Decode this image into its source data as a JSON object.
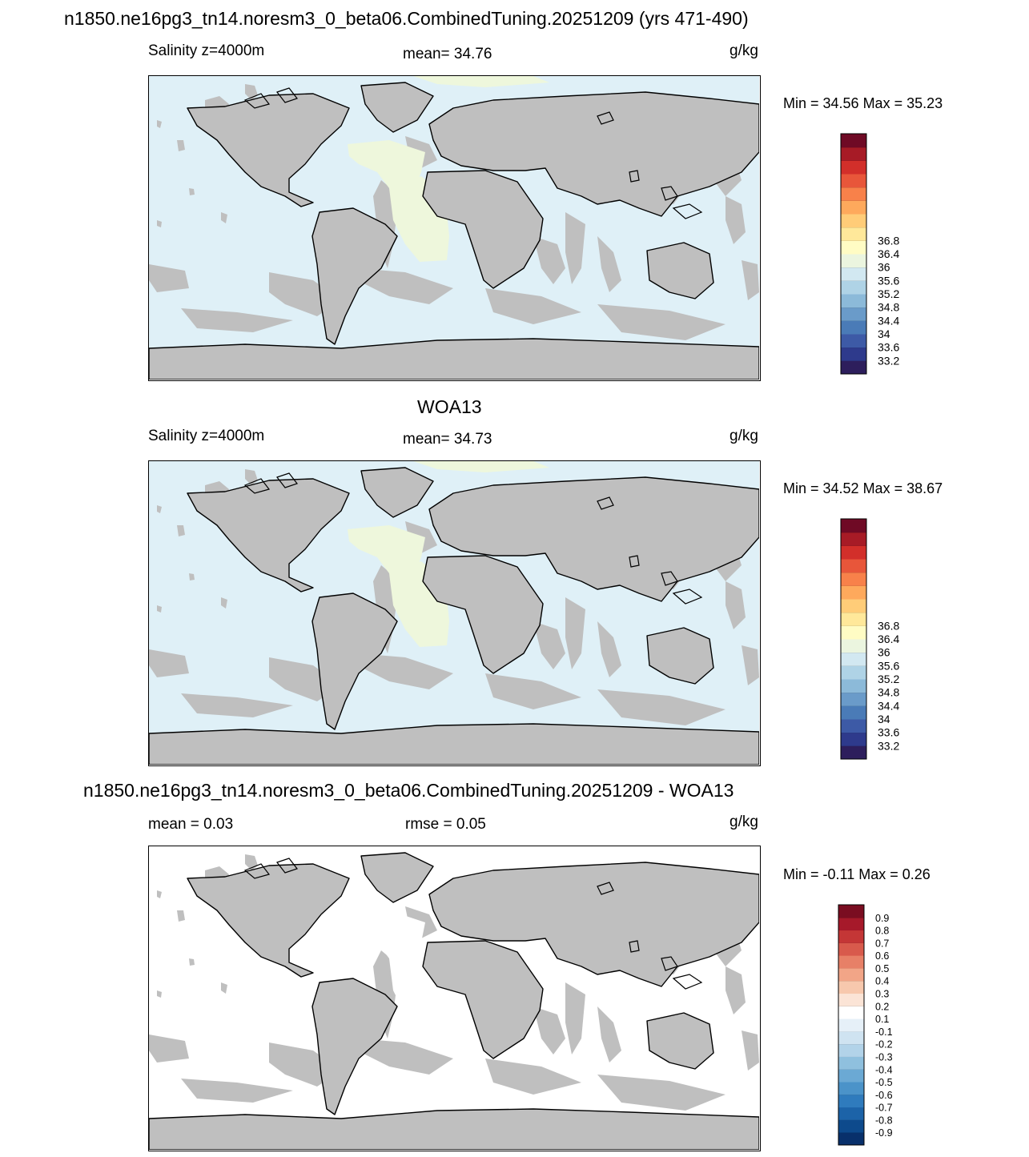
{
  "figure_title": "n1850.ne16pg3_tn14.noresm3_0_beta06.CombinedTuning.20251209 (yrs 471-490)",
  "colors": {
    "land": "#bfbfbf",
    "coast": "#000000",
    "deep_blue": "#dff0f7",
    "atl_green": "#eef7dc"
  },
  "panels": [
    {
      "id": "model",
      "header": "",
      "left_label": "Salinity z=4000m",
      "center_label": "mean=  34.76",
      "units": "g/kg",
      "minmax": "Min =  34.56 Max =  35.23",
      "ocean_fill": "#dff0f7",
      "atlantic_fill": "#eef7dc",
      "colorbar": {
        "colors": [
          "#2d1e5c",
          "#2e3a8c",
          "#3d5aa6",
          "#4a7bb7",
          "#6a9bc9",
          "#8cbad9",
          "#afd3e6",
          "#d2e8f1",
          "#ebf5df",
          "#fffcc4",
          "#ffe89a",
          "#ffcc78",
          "#fea95c",
          "#f8814a",
          "#e8563a",
          "#d22f2a",
          "#a71b26",
          "#6f0a25"
        ],
        "labels": [
          "33.2",
          "33.6",
          "34",
          "34.4",
          "34.8",
          "35.2",
          "35.6",
          "36",
          "36.4",
          "36.8"
        ]
      }
    },
    {
      "id": "obs",
      "header": "WOA13",
      "left_label": "Salinity z=4000m",
      "center_label": "mean=  34.73",
      "units": "g/kg",
      "minmax": "Min =  34.52 Max =  38.67",
      "ocean_fill": "#dff0f7",
      "atlantic_fill": "#eef7dc",
      "colorbar": {
        "colors": [
          "#2d1e5c",
          "#2e3a8c",
          "#3d5aa6",
          "#4a7bb7",
          "#6a9bc9",
          "#8cbad9",
          "#afd3e6",
          "#d2e8f1",
          "#ebf5df",
          "#fffcc4",
          "#ffe89a",
          "#ffcc78",
          "#fea95c",
          "#f8814a",
          "#e8563a",
          "#d22f2a",
          "#a71b26",
          "#6f0a25"
        ],
        "labels": [
          "33.2",
          "33.6",
          "34",
          "34.4",
          "34.8",
          "35.2",
          "35.6",
          "36",
          "36.4",
          "36.8"
        ]
      }
    },
    {
      "id": "diff",
      "header": "n1850.ne16pg3_tn14.noresm3_0_beta06.CombinedTuning.20251209 - WOA13",
      "left_label": "mean =   0.03",
      "center_label": "rmse =   0.05",
      "units": "g/kg",
      "minmax": "Min =  -0.11 Max =   0.26",
      "ocean_fill": "#ffffff",
      "atlantic_fill": "#ffffff",
      "colorbar": {
        "colors": [
          "#08306b",
          "#0d4a8c",
          "#1c63a8",
          "#2f7bbd",
          "#4b93c9",
          "#6ba9d4",
          "#8fc0de",
          "#b2d3e9",
          "#cfe3f1",
          "#e6f0f8",
          "#ffffff",
          "#fbe4d6",
          "#f7c8ad",
          "#f2a587",
          "#e78067",
          "#d85a4c",
          "#c43636",
          "#a6192a",
          "#7a0d21"
        ],
        "labels": [
          "-0.9",
          "-0.8",
          "-0.7",
          "-0.6",
          "-0.5",
          "-0.4",
          "-0.3",
          "-0.2",
          "-0.1",
          "0.1",
          "0.2",
          "0.3",
          "0.4",
          "0.5",
          "0.6",
          "0.7",
          "0.8",
          "0.9"
        ]
      }
    }
  ]
}
